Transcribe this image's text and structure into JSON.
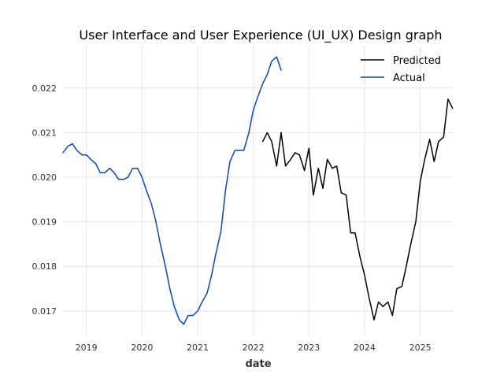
{
  "chart_data": {
    "type": "line",
    "title": "User Interface and User Experience (UI_UX) Design graph",
    "xlabel": "date",
    "ylabel": "",
    "x_range": [
      2018.58,
      2025.6
    ],
    "ylim": [
      0.01645,
      0.02295
    ],
    "x_ticks": [
      2019,
      2020,
      2021,
      2022,
      2023,
      2024,
      2025
    ],
    "x_tick_labels": [
      "2019",
      "2020",
      "2021",
      "2022",
      "2023",
      "2024",
      "2025"
    ],
    "y_ticks": [
      0.017,
      0.018,
      0.019,
      0.02,
      0.021,
      0.022
    ],
    "y_tick_labels": [
      "0.017",
      "0.018",
      "0.019",
      "0.020",
      "0.021",
      "0.022"
    ],
    "grid": true,
    "legend_position": "top-right",
    "series": [
      {
        "name": "Predicted",
        "color": "#000000",
        "x": [
          2022.17,
          2022.25,
          2022.33,
          2022.42,
          2022.5,
          2022.58,
          2022.67,
          2022.75,
          2022.83,
          2022.92,
          2023.0,
          2023.08,
          2023.17,
          2023.25,
          2023.33,
          2023.42,
          2023.5,
          2023.58,
          2023.67,
          2023.75,
          2023.83,
          2023.92,
          2024.0,
          2024.08,
          2024.17,
          2024.25,
          2024.33,
          2024.42,
          2024.5,
          2024.58,
          2024.67,
          2024.75,
          2024.83,
          2024.92,
          2025.0,
          2025.08,
          2025.17,
          2025.25,
          2025.33,
          2025.42,
          2025.5,
          2025.58
        ],
        "values": [
          0.0208,
          0.021,
          0.0208,
          0.02025,
          0.021,
          0.02025,
          0.0204,
          0.02055,
          0.0205,
          0.02015,
          0.02065,
          0.0196,
          0.0202,
          0.01975,
          0.0204,
          0.0202,
          0.02025,
          0.01965,
          0.0196,
          0.01875,
          0.01875,
          0.0182,
          0.0178,
          0.0173,
          0.0168,
          0.0172,
          0.0171,
          0.0172,
          0.0169,
          0.0175,
          0.01755,
          0.018,
          0.0185,
          0.019,
          0.0199,
          0.0204,
          0.02085,
          0.02035,
          0.0208,
          0.0209,
          0.02175,
          0.02155
        ]
      },
      {
        "name": "Actual",
        "color": "#0343df",
        "x": [
          2018.58,
          2018.67,
          2018.75,
          2018.83,
          2018.92,
          2019.0,
          2019.08,
          2019.17,
          2019.25,
          2019.33,
          2019.42,
          2019.5,
          2019.58,
          2019.67,
          2019.75,
          2019.83,
          2019.92,
          2020.0,
          2020.08,
          2020.17,
          2020.25,
          2020.33,
          2020.42,
          2020.5,
          2020.58,
          2020.67,
          2020.75,
          2020.83,
          2020.92,
          2021.0,
          2021.08,
          2021.17,
          2021.25,
          2021.33,
          2021.42,
          2021.5,
          2021.58,
          2021.67,
          2021.75,
          2021.83,
          2021.92,
          2022.0,
          2022.08,
          2022.17,
          2022.25,
          2022.33,
          2022.42,
          2022.5
        ],
        "values": [
          0.02055,
          0.0207,
          0.02075,
          0.0206,
          0.0205,
          0.0205,
          0.0204,
          0.0203,
          0.0201,
          0.0201,
          0.0202,
          0.0201,
          0.01995,
          0.01995,
          0.02,
          0.0202,
          0.0202,
          0.02,
          0.0197,
          0.0194,
          0.019,
          0.0185,
          0.018,
          0.0175,
          0.0171,
          0.0168,
          0.0167,
          0.0169,
          0.0169,
          0.017,
          0.0172,
          0.0174,
          0.0178,
          0.0183,
          0.0188,
          0.0197,
          0.02035,
          0.0206,
          0.0206,
          0.0206,
          0.021,
          0.0215,
          0.0218,
          0.0221,
          0.0223,
          0.0226,
          0.0227,
          0.0224
        ]
      }
    ]
  }
}
